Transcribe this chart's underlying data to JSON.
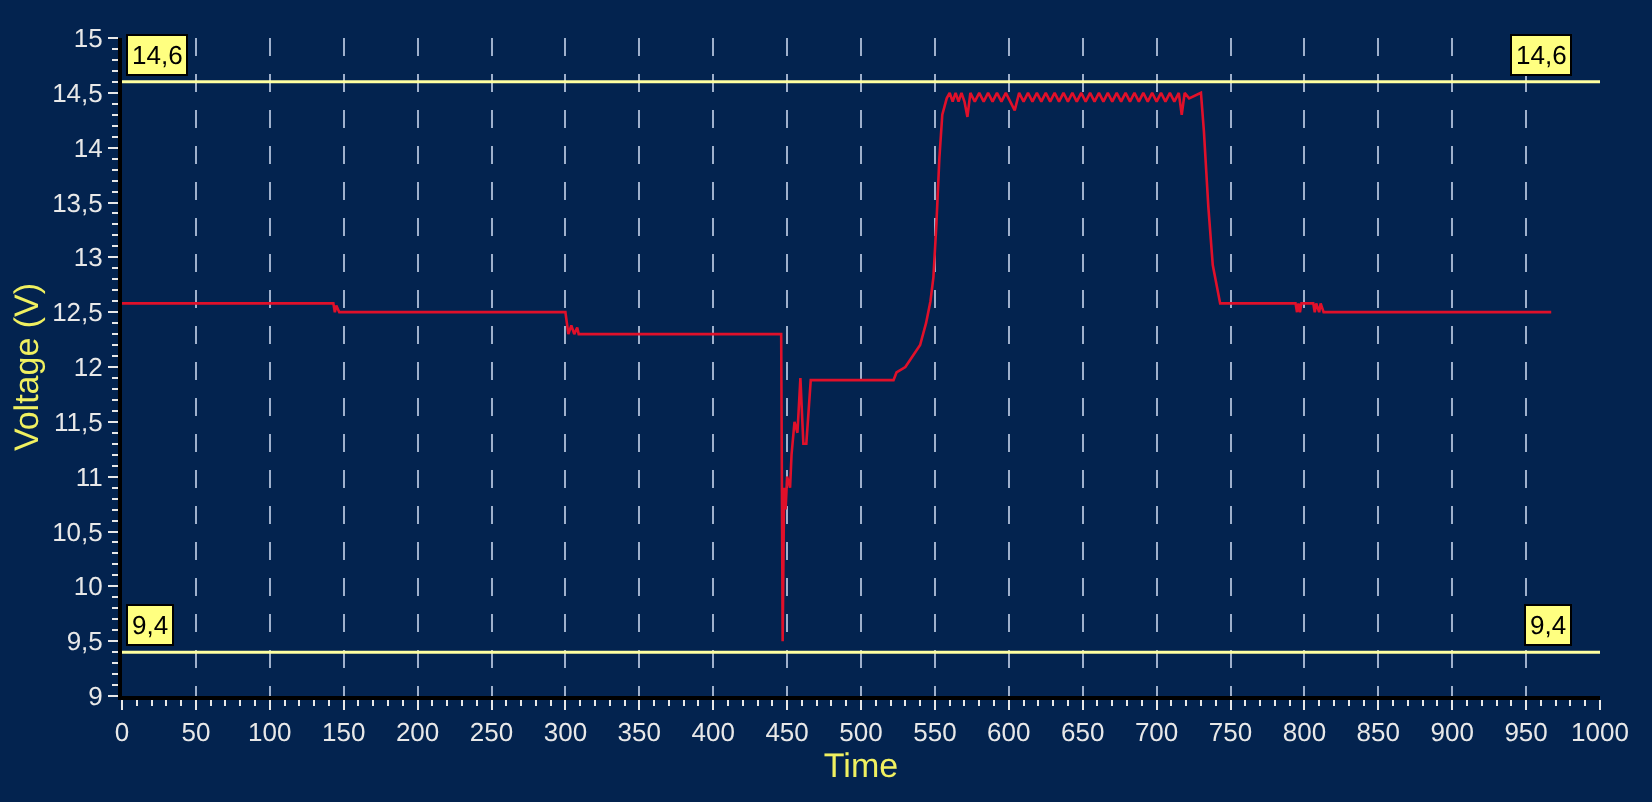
{
  "chart_data": {
    "type": "line",
    "xlabel": "Time",
    "ylabel": "Voltage (V)",
    "series": [
      {
        "color": "#e0102a",
        "x": [
          0,
          143,
          144,
          145,
          147,
          300,
          302,
          304,
          306,
          308,
          309,
          446,
          447,
          448,
          449,
          450,
          452,
          453,
          455,
          457,
          459,
          461,
          463,
          466,
          522,
          524,
          530,
          535,
          540,
          544,
          547,
          549,
          551,
          553,
          555,
          558,
          560,
          562,
          564,
          566,
          568,
          570,
          572,
          574,
          577,
          580,
          583,
          586,
          589,
          592,
          595,
          598,
          601,
          604,
          607,
          610,
          613,
          616,
          619,
          622,
          625,
          628,
          631,
          634,
          637,
          640,
          643,
          646,
          649,
          652,
          655,
          658,
          661,
          664,
          667,
          670,
          673,
          676,
          679,
          682,
          685,
          688,
          691,
          694,
          697,
          700,
          703,
          706,
          709,
          712,
          715,
          717,
          719,
          722,
          730,
          732,
          735,
          738,
          743,
          794,
          795,
          796,
          797,
          798,
          806,
          807,
          808,
          810,
          811,
          813,
          967
        ],
        "values": [
          12.58,
          12.58,
          12.5,
          12.56,
          12.5,
          12.5,
          12.3,
          12.38,
          12.3,
          12.36,
          12.3,
          12.3,
          9.5,
          10.9,
          10.7,
          11.0,
          10.9,
          11.2,
          11.5,
          11.4,
          11.9,
          11.3,
          11.3,
          11.88,
          11.88,
          11.95,
          12.0,
          12.1,
          12.2,
          12.4,
          12.6,
          12.82,
          13.3,
          13.9,
          14.3,
          14.45,
          14.5,
          14.42,
          14.5,
          14.42,
          14.5,
          14.42,
          14.28,
          14.5,
          14.42,
          14.5,
          14.42,
          14.5,
          14.42,
          14.5,
          14.42,
          14.5,
          14.42,
          14.34,
          14.5,
          14.42,
          14.5,
          14.42,
          14.5,
          14.42,
          14.5,
          14.42,
          14.5,
          14.42,
          14.5,
          14.42,
          14.5,
          14.42,
          14.5,
          14.42,
          14.5,
          14.42,
          14.5,
          14.42,
          14.5,
          14.42,
          14.5,
          14.42,
          14.5,
          14.42,
          14.5,
          14.42,
          14.5,
          14.42,
          14.5,
          14.42,
          14.5,
          14.42,
          14.5,
          14.42,
          14.5,
          14.3,
          14.5,
          14.45,
          14.5,
          14.15,
          13.46,
          12.93,
          12.58,
          12.58,
          12.5,
          12.58,
          12.5,
          12.58,
          12.58,
          12.5,
          12.58,
          12.5,
          12.58,
          12.5,
          12.5
        ]
      }
    ],
    "xlim": [
      0,
      1000
    ],
    "xticks": [
      0,
      50,
      100,
      150,
      200,
      250,
      300,
      350,
      400,
      450,
      500,
      550,
      600,
      650,
      700,
      750,
      800,
      850,
      900,
      950,
      1000
    ],
    "ylim": [
      9,
      15
    ],
    "yticks": [
      9,
      {
        "value": 9.5,
        "label": "9,5"
      },
      10,
      {
        "value": 10.5,
        "label": "10,5"
      },
      11,
      {
        "value": 11.5,
        "label": "11,5"
      },
      12,
      {
        "value": 12.5,
        "label": "12,5"
      },
      13,
      {
        "value": 13.5,
        "label": "13,5"
      },
      14,
      {
        "value": 14.5,
        "label": "14,5"
      },
      15
    ],
    "ref_lines": [
      {
        "axis": "y",
        "value": 14.6,
        "label": "14,6",
        "color": "#ffffa0"
      },
      {
        "axis": "y",
        "value": 9.4,
        "label": "9,4",
        "color": "#ffffa0"
      }
    ],
    "grid": "x",
    "line_style": "solid"
  }
}
